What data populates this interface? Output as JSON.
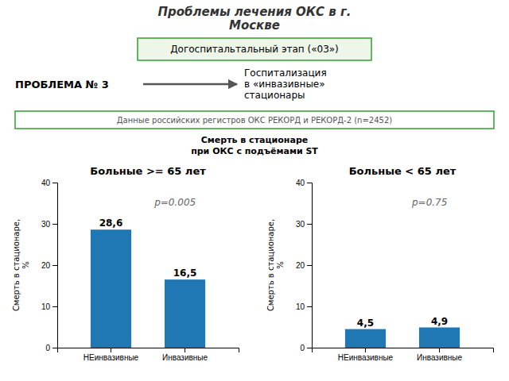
{
  "title": "Проблемы лечения ОКС в г.\nМоскве",
  "annotations": [
    "Догоспитальтальный этап («03»)",
    "ПРОБЛЕМА № 3",
    "Госпитализация\nв «инвазивные»\nстационары",
    "Данные российских регистров ОКС РЕКОРД и РЕКОРД-2 (n=2452)"
  ],
  "subtitle": "Смерть в стационаре\nпри ОКС с подъёмами ST",
  "chart_data": [
    {
      "type": "bar",
      "title": "Больные >= 65 лет",
      "categories": [
        "НЕинвазивные",
        "Инвазивные"
      ],
      "values": [
        28.6,
        16.5
      ],
      "value_labels": [
        "28,6",
        "16,5"
      ],
      "data_labels": true,
      "ylabel": "Смерть в стационаре,\n%",
      "ylim": [
        0,
        40
      ],
      "yticks": [
        0,
        10,
        20,
        30,
        40
      ],
      "grid": false,
      "annotations": [
        "p=0.005"
      ]
    },
    {
      "type": "bar",
      "title": "Больные < 65 лет",
      "categories": [
        "НЕинвазивные",
        "Инвазивные"
      ],
      "values": [
        4.5,
        4.9
      ],
      "value_labels": [
        "4,5",
        "4,9"
      ],
      "data_labels": true,
      "ylabel": "Смерть в стационаре,\n%",
      "ylim": [
        0,
        40
      ],
      "yticks": [
        0,
        10,
        20,
        30,
        40
      ],
      "grid": false,
      "annotations": [
        "p=0.75"
      ]
    }
  ]
}
